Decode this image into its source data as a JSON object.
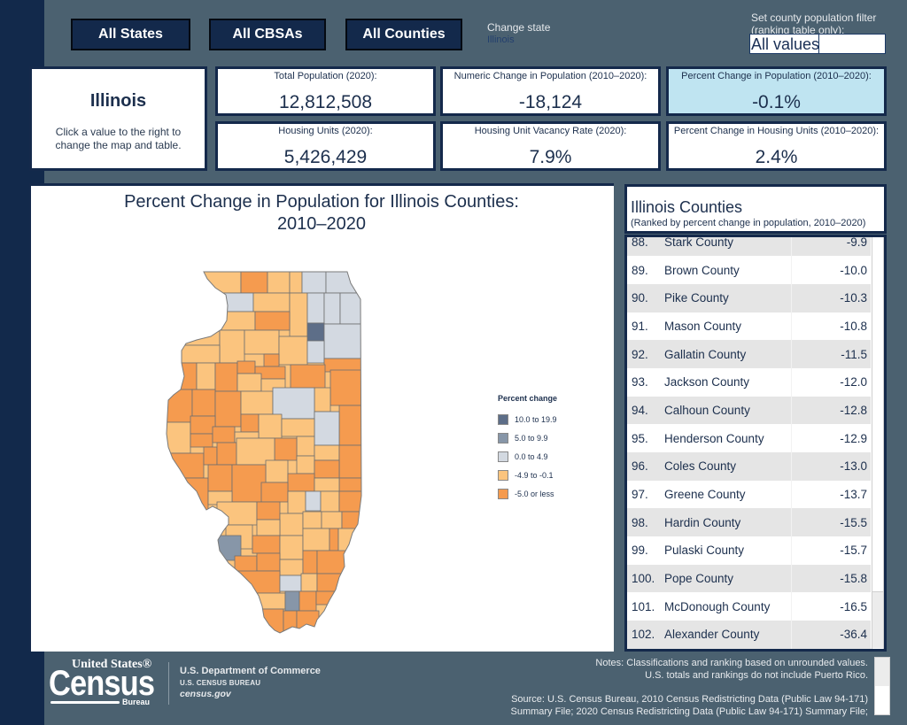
{
  "nav": {
    "buttons": [
      {
        "label": "All States"
      },
      {
        "label": "All CBSAs"
      },
      {
        "label": "All Counties"
      }
    ]
  },
  "state_selector": {
    "label": "Change state",
    "value": "Illinois"
  },
  "population_filter": {
    "label_line1": "Set county population filter",
    "label_line2": "(ranking table only):",
    "value": "All values"
  },
  "summary": {
    "state": "Illinois",
    "instruction": "Click a value to the right to change the map and table.",
    "highlight_color": "#bfe4f1",
    "cards": [
      {
        "label": "Total Population (2020):",
        "value": "12,812,508",
        "selected": false
      },
      {
        "label": "Numeric Change in Population (2010–2020):",
        "value": "-18,124",
        "selected": false
      },
      {
        "label": "Percent Change in Population (2010–2020):",
        "value": "-0.1%",
        "selected": true
      },
      {
        "label": "Housing Units (2020):",
        "value": "5,426,429",
        "selected": false
      },
      {
        "label": "Housing Unit Vacancy Rate (2020):",
        "value": "7.9%",
        "selected": false
      },
      {
        "label": "Percent Change in Housing Units (2010–2020):",
        "value": "2.4%",
        "selected": false
      }
    ]
  },
  "map": {
    "title_line1": "Percent Change in Population for Illinois Counties:",
    "title_line2": "2010–2020",
    "legend": {
      "title": "Percent change",
      "items": [
        {
          "label": "10.0 to 19.9",
          "color": "#5d6e88"
        },
        {
          "label": "5.0 to 9.9",
          "color": "#8796a8"
        },
        {
          "label": "0.0 to 4.9",
          "color": "#d3d9e1"
        },
        {
          "label": "-4.9 to -0.1",
          "color": "#fbc47e"
        },
        {
          "label": "-5.0 or less",
          "color": "#f59b4f"
        }
      ]
    },
    "county_class_index": [
      3,
      4,
      3,
      3,
      2,
      2,
      2,
      3,
      3,
      2,
      2,
      2,
      3,
      4,
      0,
      2,
      3,
      3,
      3,
      3,
      2,
      4,
      3,
      4,
      3,
      4,
      4,
      4,
      4,
      4,
      4,
      3,
      3,
      3,
      4,
      4,
      4,
      3,
      2,
      4,
      2,
      3,
      4,
      4,
      3,
      3,
      3,
      4,
      4,
      3,
      4,
      3,
      4,
      4,
      4,
      4,
      3,
      3,
      3,
      4,
      4,
      4,
      3,
      4,
      4,
      4,
      4,
      3,
      3,
      2,
      3,
      4,
      3,
      4,
      3,
      3,
      3,
      4,
      3,
      3,
      4,
      3,
      3,
      4,
      3,
      1,
      4,
      4,
      3,
      4,
      4,
      4,
      2,
      3,
      4,
      3,
      1,
      4,
      4,
      4,
      4,
      4
    ]
  },
  "ranking": {
    "title": "Illinois Counties",
    "subtitle": "(Ranked by percent change in population, 2010–2020)",
    "rows": [
      {
        "rank": "88.",
        "name": "Stark County",
        "value": "-9.9"
      },
      {
        "rank": "89.",
        "name": "Brown County",
        "value": "-10.0"
      },
      {
        "rank": "90.",
        "name": "Pike County",
        "value": "-10.3"
      },
      {
        "rank": "91.",
        "name": "Mason County",
        "value": "-10.8"
      },
      {
        "rank": "92.",
        "name": "Gallatin County",
        "value": "-11.5"
      },
      {
        "rank": "93.",
        "name": "Jackson County",
        "value": "-12.0"
      },
      {
        "rank": "94.",
        "name": "Calhoun County",
        "value": "-12.8"
      },
      {
        "rank": "95.",
        "name": "Henderson County",
        "value": "-12.9"
      },
      {
        "rank": "96.",
        "name": "Coles County",
        "value": "-13.0"
      },
      {
        "rank": "97.",
        "name": "Greene County",
        "value": "-13.7"
      },
      {
        "rank": "98.",
        "name": "Hardin County",
        "value": "-15.5"
      },
      {
        "rank": "99.",
        "name": "Pulaski County",
        "value": "-15.7"
      },
      {
        "rank": "100.",
        "name": "Pope County",
        "value": "-15.8"
      },
      {
        "rank": "101.",
        "name": "McDonough County",
        "value": "-16.5"
      },
      {
        "rank": "102.",
        "name": "Alexander County",
        "value": "-36.4"
      }
    ]
  },
  "footer": {
    "logo": {
      "line1": "United States®",
      "line2": "Census",
      "line3": "Bureau"
    },
    "dept": "U.S. Department of Commerce",
    "bureau": "U.S. CENSUS BUREAU",
    "site": "census.gov",
    "notes_line1": "Notes: Classifications and ranking based on unrounded values.",
    "notes_line2": "U.S. totals and rankings do not include Puerto Rico.",
    "source_line1": "Source: U.S. Census Bureau, 2010 Census Redistricting Data (Public Law 94-171)",
    "source_line2": "Summary File; 2020 Census Redistricting Data (Public Law 94-171) Summary File;"
  }
}
